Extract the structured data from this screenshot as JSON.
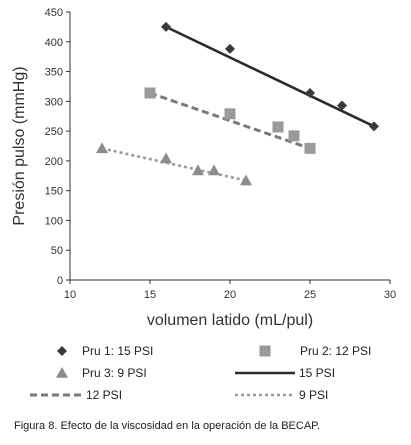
{
  "chart_data": {
    "type": "scatter",
    "xlabel": "volumen latido (mL/pul)",
    "ylabel": "Presión pulso (mmHg)",
    "xlim": [
      10,
      30
    ],
    "ylim": [
      0,
      450
    ],
    "x_ticks": [
      "10",
      "15",
      "20",
      "25",
      "30"
    ],
    "y_ticks": [
      "0",
      "50",
      "100",
      "150",
      "200",
      "250",
      "300",
      "350",
      "400",
      "450"
    ],
    "grid": false,
    "legend_position": "bottom",
    "series": [
      {
        "name": "Pru 1: 15 PSI",
        "marker": "diamond",
        "color": "#3a3a3a",
        "x": [
          16,
          20,
          25,
          27,
          29
        ],
        "y": [
          425,
          388,
          314,
          293,
          258
        ]
      },
      {
        "name": "Pru 2: 12 PSI",
        "marker": "square",
        "color": "#9a9a9a",
        "x": [
          15,
          20,
          23,
          24,
          25
        ],
        "y": [
          314,
          279,
          257,
          242,
          221
        ]
      },
      {
        "name": "Pru 3: 9 PSI",
        "marker": "triangle",
        "color": "#8c8c8c",
        "x": [
          12,
          16,
          18,
          19,
          21
        ],
        "y": [
          221,
          204,
          184,
          184,
          167
        ]
      }
    ],
    "trendlines": [
      {
        "name": "15 PSI",
        "style": "solid",
        "color": "#2b2b2b",
        "x": [
          16,
          29
        ],
        "y": [
          425,
          258
        ]
      },
      {
        "name": "12 PSI",
        "style": "dash",
        "color": "#7a7a7a",
        "x": [
          15,
          25
        ],
        "y": [
          314,
          221
        ]
      },
      {
        "name": "9 PSI",
        "style": "dot",
        "color": "#9a9a9a",
        "x": [
          12,
          21
        ],
        "y": [
          221,
          167
        ]
      }
    ]
  },
  "caption": "Figura 8.  Efecto de la viscosidad en la operación de la BECAP."
}
